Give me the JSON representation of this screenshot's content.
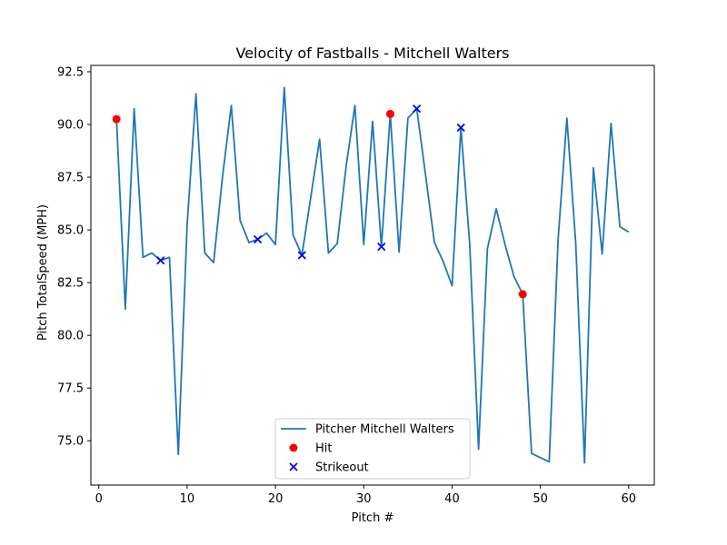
{
  "chart_data": {
    "type": "line",
    "title": "Velocity of Fastballs - Mitchell Walters",
    "xlabel": "Pitch #",
    "ylabel": "Pitch TotalSpeed (MPH)",
    "xlim": [
      -0.9,
      62.9
    ],
    "ylim": [
      72.9,
      92.8
    ],
    "xticks": [
      0,
      10,
      20,
      30,
      40,
      50,
      60
    ],
    "yticks": [
      75.0,
      77.5,
      80.0,
      82.5,
      85.0,
      87.5,
      90.0,
      92.5
    ],
    "grid": false,
    "legend_position": "lower center",
    "series": [
      {
        "name": "Pitcher Mitchell Walters",
        "kind": "line",
        "color": "#1f77b4",
        "x": [
          2,
          3,
          4,
          5,
          6,
          7,
          8,
          9,
          10,
          11,
          12,
          13,
          14,
          15,
          16,
          17,
          18,
          19,
          20,
          21,
          22,
          23,
          24,
          25,
          26,
          27,
          28,
          29,
          30,
          31,
          32,
          33,
          34,
          35,
          36,
          37,
          38,
          39,
          40,
          41,
          42,
          43,
          44,
          45,
          46,
          47,
          48,
          49,
          50,
          51,
          52,
          53,
          54,
          55,
          56,
          57,
          58,
          59,
          60
        ],
        "y": [
          90.25,
          81.25,
          90.75,
          83.7,
          83.9,
          83.55,
          83.7,
          74.35,
          85.25,
          91.45,
          83.9,
          83.45,
          87.5,
          90.9,
          85.45,
          84.4,
          84.55,
          84.85,
          84.3,
          91.75,
          84.75,
          83.8,
          86.55,
          89.3,
          83.9,
          84.35,
          88.0,
          90.9,
          84.3,
          90.15,
          84.2,
          90.5,
          83.95,
          90.3,
          90.75,
          87.6,
          84.4,
          83.5,
          82.35,
          89.85,
          84.3,
          74.6,
          84.1,
          86.0,
          84.3,
          82.8,
          81.95,
          74.4,
          74.2,
          74.0,
          84.5,
          90.3,
          84.4,
          73.95,
          87.95,
          83.85,
          90.05,
          85.15,
          84.9
        ]
      },
      {
        "name": "Hit",
        "kind": "scatter",
        "marker": "o",
        "color": "#ff0000",
        "x": [
          2,
          33,
          48
        ],
        "y": [
          90.25,
          90.5,
          81.95
        ]
      },
      {
        "name": "Strikeout",
        "kind": "scatter",
        "marker": "x",
        "color": "#0000ff",
        "x": [
          7,
          18,
          23,
          32,
          36,
          41
        ],
        "y": [
          83.55,
          84.55,
          83.8,
          84.2,
          90.75,
          89.85
        ]
      }
    ]
  }
}
